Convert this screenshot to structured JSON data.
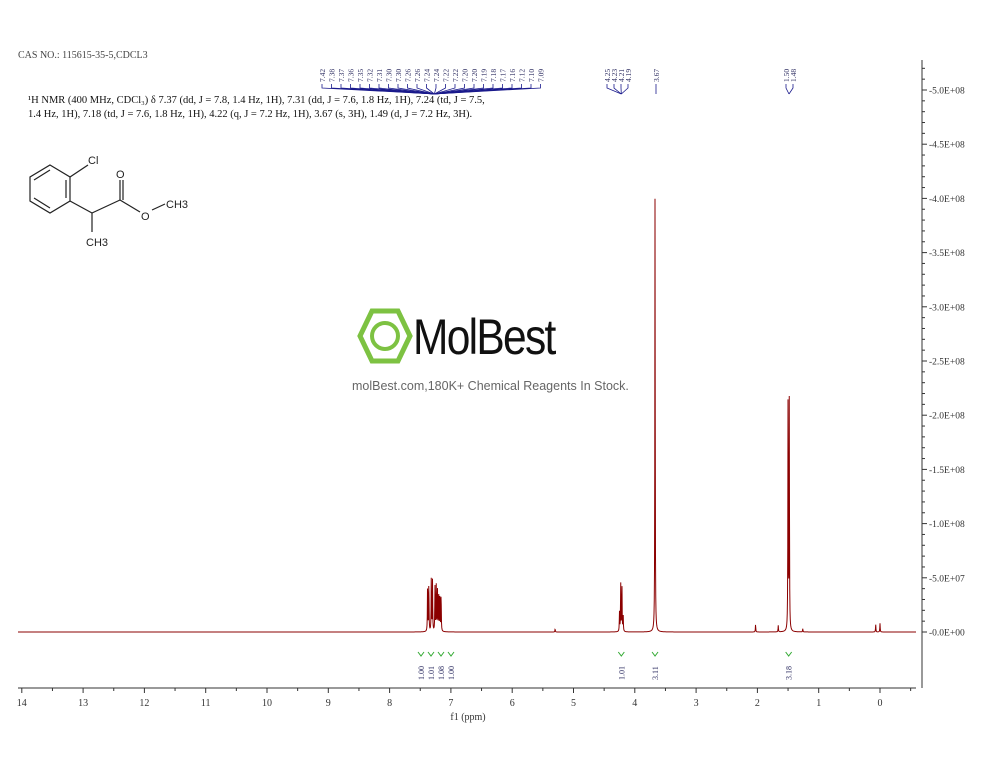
{
  "header": {
    "cas": "CAS NO.: 115615-35-5,CDCL3",
    "description": "¹H NMR (400 MHz, CDCl₃) δ 7.37 (dd, J = 7.8, 1.4 Hz, 1H), 7.31 (dd, J = 7.6, 1.8 Hz, 1H), 7.24 (td, J = 7.5, 1.4 Hz, 1H), 7.18 (td, J = 7.6, 1.8 Hz, 1H), 4.22 (q, J = 7.2 Hz, 1H), 3.67 (s, 3H), 1.49 (d, J = 7.2 Hz, 3H)."
  },
  "structure": {
    "labels": [
      "Cl",
      "O",
      "O",
      "CH3",
      "CH3"
    ]
  },
  "watermark": {
    "logo": "MolBest",
    "tagline": "molBest.com,180K+ Chemical Reagents In Stock.",
    "color": "#7dc242"
  },
  "chart_data": {
    "type": "line",
    "xlabel": "f1 (ppm)",
    "xlim": [
      14,
      -0.6
    ],
    "ylim": [
      -100000000.0,
      530000000.0
    ],
    "xticks": [
      "14",
      "13",
      "12",
      "11",
      "10",
      "9",
      "8",
      "7",
      "6",
      "5",
      "4",
      "3",
      "2",
      "1",
      "0"
    ],
    "yticks": [
      "0.0E+00",
      "5.0E+07",
      "1.0E+08",
      "1.5E+08",
      "2.0E+08",
      "2.5E+08",
      "3.0E+08",
      "3.5E+08",
      "4.0E+08",
      "4.5E+08",
      "5.0E+08"
    ],
    "line_color": "#8b0000",
    "peaks": [
      {
        "ppm": 7.38,
        "height": 48000000.0
      },
      {
        "ppm": 7.36,
        "height": 46000000.0
      },
      {
        "ppm": 7.32,
        "height": 49000000.0
      },
      {
        "ppm": 7.3,
        "height": 47000000.0
      },
      {
        "ppm": 7.26,
        "height": 42000000.0
      },
      {
        "ppm": 7.24,
        "height": 45000000.0
      },
      {
        "ppm": 7.22,
        "height": 43000000.0
      },
      {
        "ppm": 7.2,
        "height": 40000000.0
      },
      {
        "ppm": 7.18,
        "height": 39000000.0
      },
      {
        "ppm": 7.16,
        "height": 36000000.0
      },
      {
        "ppm": 4.25,
        "height": 18000000.0
      },
      {
        "ppm": 4.23,
        "height": 46000000.0
      },
      {
        "ppm": 4.21,
        "height": 45000000.0
      },
      {
        "ppm": 4.19,
        "height": 17000000.0
      },
      {
        "ppm": 3.67,
        "height": 407000000.0
      },
      {
        "ppm": 1.5,
        "height": 220000000.0
      },
      {
        "ppm": 1.48,
        "height": 214000000.0
      },
      {
        "ppm": 5.3,
        "height": 3000000.0
      },
      {
        "ppm": 2.03,
        "height": 7000000.0
      },
      {
        "ppm": 1.66,
        "height": 6000000.0
      },
      {
        "ppm": 1.26,
        "height": 3000000.0
      },
      {
        "ppm": 0.07,
        "height": 7000000.0
      },
      {
        "ppm": 0.0,
        "height": 8000000.0
      }
    ],
    "peak_labels": {
      "aromatic": [
        "7.42",
        "7.38",
        "7.37",
        "7.36",
        "7.35",
        "7.32",
        "7.31",
        "7.30",
        "7.30",
        "7.26",
        "7.26",
        "7.24",
        "7.24",
        "7.22",
        "7.22",
        "7.20",
        "7.20",
        "7.19",
        "7.18",
        "7.17",
        "7.16",
        "7.12",
        "7.10",
        "7.09"
      ],
      "quartet": [
        "4.25",
        "4.23",
        "4.21",
        "4.19"
      ],
      "singlet": [
        "3.67"
      ],
      "doublet": [
        "1.50",
        "1.48"
      ]
    },
    "integrals": [
      {
        "ppm": 7.37,
        "value": "1.00"
      },
      {
        "ppm": 7.31,
        "value": "1.01"
      },
      {
        "ppm": 7.24,
        "value": "1.08"
      },
      {
        "ppm": 7.18,
        "value": "1.00"
      },
      {
        "ppm": 4.22,
        "value": "1.01"
      },
      {
        "ppm": 3.67,
        "value": "3.11"
      },
      {
        "ppm": 1.49,
        "value": "3.18"
      }
    ]
  }
}
